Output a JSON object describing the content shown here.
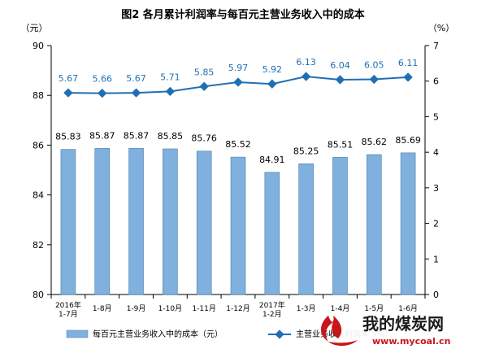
{
  "chart_data": {
    "type": "bar+line",
    "title": "图2  各月累计利润率与每百元主营业务收入中的成本",
    "left_axis_unit": "（元）",
    "right_axis_unit": "（%）",
    "left_ylim": [
      80,
      90
    ],
    "left_ticks": [
      "80",
      "82",
      "84",
      "86",
      "88",
      "90"
    ],
    "right_ylim": [
      0,
      7
    ],
    "right_ticks": [
      "0",
      "1",
      "2",
      "3",
      "4",
      "5",
      "6",
      "7"
    ],
    "categories": [
      [
        "2016年",
        "1-7月"
      ],
      [
        "1-8月"
      ],
      [
        "1-9月"
      ],
      [
        "1-10月"
      ],
      [
        "1-11月"
      ],
      [
        "1-12月"
      ],
      [
        "2017年",
        "1-2月"
      ],
      [
        "1-3月"
      ],
      [
        "1-4月"
      ],
      [
        "1-5月"
      ],
      [
        "1-6月"
      ]
    ],
    "series": [
      {
        "name": "每百元主营业务收入中的成本（元）",
        "type": "bar",
        "axis": "left",
        "color": "#7fb0de",
        "values": [
          85.83,
          85.87,
          85.87,
          85.85,
          85.76,
          85.52,
          84.91,
          85.25,
          85.51,
          85.62,
          85.69
        ]
      },
      {
        "name": "主营业务收入利润率（%）",
        "type": "line",
        "axis": "right",
        "color": "#1f6fb5",
        "values": [
          5.67,
          5.66,
          5.67,
          5.71,
          5.85,
          5.97,
          5.92,
          6.13,
          6.04,
          6.05,
          6.11
        ]
      }
    ],
    "bar_labels": [
      "85.83",
      "85.87",
      "85.87",
      "85.85",
      "85.76",
      "85.52",
      "84.91",
      "85.25",
      "85.51",
      "85.62",
      "85.69"
    ],
    "line_labels": [
      "5.67",
      "5.66",
      "5.67",
      "5.71",
      "5.85",
      "5.97",
      "5.92",
      "6.13",
      "6.04",
      "6.05",
      "6.11"
    ],
    "grid": false,
    "legend_position": "bottom"
  },
  "watermark": {
    "text_cn": "我的煤炭网",
    "url": "www.mycoal.cn",
    "logo_color": "#c8161d"
  }
}
